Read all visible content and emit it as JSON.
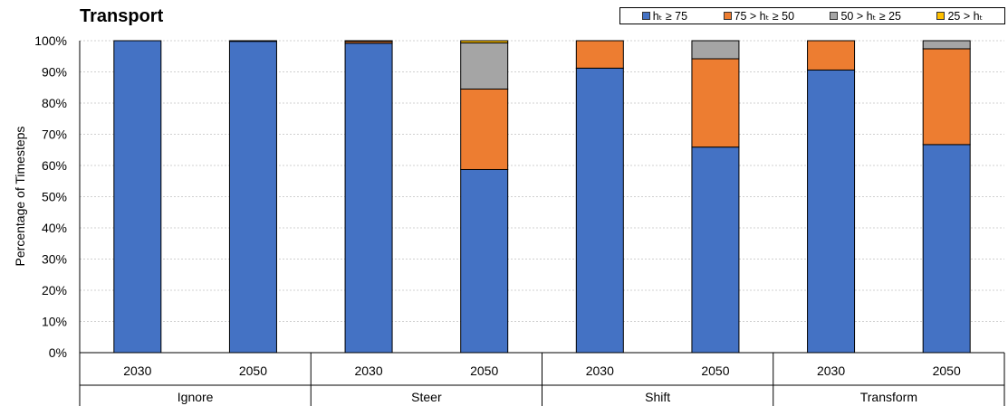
{
  "chart_data": {
    "type": "bar",
    "stacked": true,
    "title": "Transport",
    "ylabel": "Percentage of Timesteps",
    "ylim": [
      0,
      100
    ],
    "yticks": [
      "0%",
      "10%",
      "20%",
      "30%",
      "40%",
      "50%",
      "60%",
      "70%",
      "80%",
      "90%",
      "100%"
    ],
    "grid": true,
    "legend_position": "top-right",
    "categories": [
      "2030",
      "2050",
      "2030",
      "2050",
      "2030",
      "2050",
      "2030",
      "2050"
    ],
    "groups": [
      {
        "label": "Ignore",
        "span": 2
      },
      {
        "label": "Steer",
        "span": 2
      },
      {
        "label": "Shift",
        "span": 2
      },
      {
        "label": "Transform",
        "span": 2
      }
    ],
    "series": [
      {
        "name": "hₜ ≥ 75",
        "color": "#4472c4",
        "values": [
          100,
          99.8,
          99.2,
          58.7,
          91.2,
          65.9,
          90.6,
          66.7
        ]
      },
      {
        "name": "75 > hₜ ≥ 50",
        "color": "#ed7d31",
        "values": [
          0,
          0.2,
          0.6,
          25.8,
          8.8,
          28.3,
          9.4,
          30.7
        ]
      },
      {
        "name": "50 > hₜ ≥ 25",
        "color": "#a5a5a5",
        "values": [
          0,
          0,
          0.2,
          14.8,
          0,
          5.8,
          0,
          2.6
        ]
      },
      {
        "name": "25 > hₜ",
        "color": "#ffc000",
        "values": [
          0,
          0,
          0,
          0.7,
          0,
          0,
          0,
          0
        ]
      }
    ]
  }
}
